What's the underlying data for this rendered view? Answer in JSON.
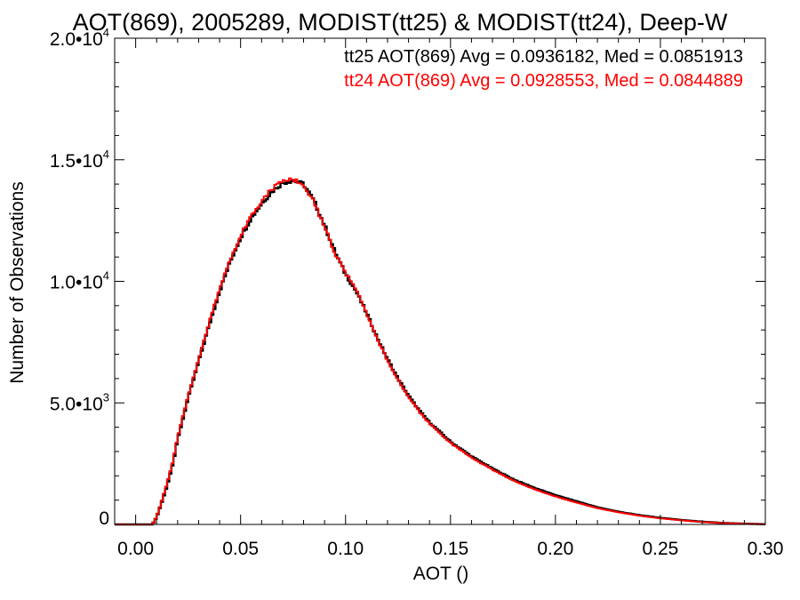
{
  "chart_data": {
    "type": "line",
    "style": "step-histogram",
    "title": "AOT(869), 2005289, MODIST(tt25) & MODIST(tt24), Deep-W",
    "xlabel": "AOT ()",
    "ylabel": "Number of Observations",
    "xlim": [
      -0.01,
      0.3
    ],
    "ylim": [
      0,
      20000
    ],
    "grid": false,
    "x_ticks": [
      {
        "value": 0.0,
        "label": "0.00"
      },
      {
        "value": 0.05,
        "label": "0.05"
      },
      {
        "value": 0.1,
        "label": "0.10"
      },
      {
        "value": 0.15,
        "label": "0.15"
      },
      {
        "value": 0.2,
        "label": "0.20"
      },
      {
        "value": 0.25,
        "label": "0.25"
      },
      {
        "value": 0.3,
        "label": "0.30"
      }
    ],
    "y_ticks": [
      {
        "value": 0,
        "mant": "0",
        "exp": ""
      },
      {
        "value": 5000,
        "mant": "5.0•10",
        "exp": "3"
      },
      {
        "value": 10000,
        "mant": "1.0•10",
        "exp": "4"
      },
      {
        "value": 15000,
        "mant": "1.5•10",
        "exp": "4"
      },
      {
        "value": 20000,
        "mant": "2.0•10",
        "exp": "4"
      }
    ],
    "annotations": [
      {
        "text": "tt25 AOT(869) Avg = 0.0936182, Med = 0.0851913",
        "color": "#000000"
      },
      {
        "text": "tt24 AOT(869) Avg = 0.0928553, Med = 0.0844889",
        "color": "#ff0000"
      }
    ],
    "series": [
      {
        "color": "#000000",
        "x": [
          -0.01,
          0.0,
          0.005,
          0.008,
          0.01,
          0.012,
          0.015,
          0.018,
          0.02,
          0.025,
          0.03,
          0.035,
          0.04,
          0.045,
          0.05,
          0.055,
          0.06,
          0.065,
          0.07,
          0.075,
          0.08,
          0.085,
          0.09,
          0.095,
          0.1,
          0.105,
          0.11,
          0.115,
          0.12,
          0.125,
          0.13,
          0.135,
          0.14,
          0.145,
          0.15,
          0.16,
          0.17,
          0.18,
          0.19,
          0.2,
          0.21,
          0.22,
          0.23,
          0.24,
          0.25,
          0.26,
          0.27,
          0.28,
          0.29,
          0.3
        ],
        "y": [
          0,
          0,
          0,
          0,
          300,
          800,
          1600,
          2600,
          3500,
          5200,
          6700,
          8200,
          9600,
          10800,
          11800,
          12600,
          13200,
          13700,
          14050,
          14150,
          14000,
          13300,
          12300,
          11200,
          10300,
          9600,
          8700,
          7700,
          6800,
          6000,
          5300,
          4700,
          4200,
          3800,
          3400,
          2800,
          2300,
          1850,
          1500,
          1200,
          950,
          700,
          520,
          380,
          270,
          180,
          110,
          60,
          30,
          10
        ]
      },
      {
        "color": "#ff0000",
        "x": [
          -0.01,
          0.0,
          0.005,
          0.008,
          0.01,
          0.012,
          0.015,
          0.018,
          0.02,
          0.025,
          0.03,
          0.035,
          0.04,
          0.045,
          0.05,
          0.055,
          0.06,
          0.065,
          0.07,
          0.075,
          0.08,
          0.085,
          0.09,
          0.095,
          0.1,
          0.105,
          0.11,
          0.115,
          0.12,
          0.125,
          0.13,
          0.135,
          0.14,
          0.145,
          0.15,
          0.16,
          0.17,
          0.18,
          0.19,
          0.2,
          0.21,
          0.22,
          0.23,
          0.24,
          0.25,
          0.26,
          0.27,
          0.28,
          0.29,
          0.3
        ],
        "y": [
          0,
          0,
          0,
          0,
          320,
          850,
          1700,
          2700,
          3600,
          5300,
          6800,
          8300,
          9700,
          10900,
          11900,
          12700,
          13300,
          13800,
          14150,
          14200,
          14000,
          13250,
          12250,
          11150,
          10350,
          9650,
          8650,
          7650,
          6750,
          5950,
          5250,
          4650,
          4150,
          3750,
          3350,
          2750,
          2250,
          1800,
          1450,
          1150,
          900,
          670,
          500,
          360,
          250,
          170,
          100,
          55,
          25,
          8
        ]
      }
    ]
  }
}
